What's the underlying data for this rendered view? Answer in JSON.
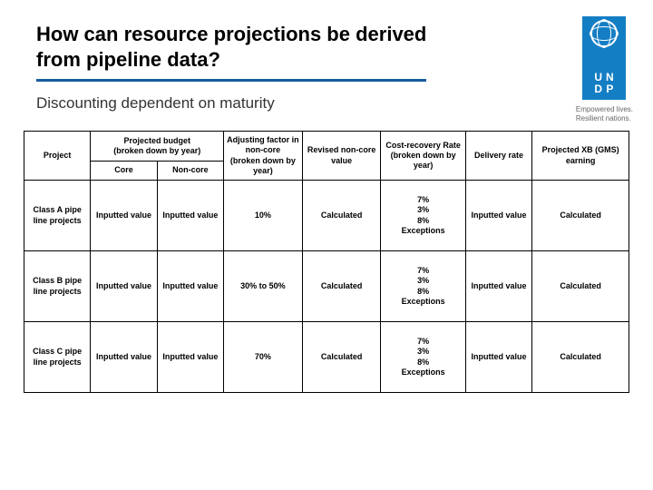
{
  "header": {
    "title": "How can resource projections be derived from pipeline data?",
    "subtitle": "Discounting dependent on maturity",
    "tagline1": "Empowered lives.",
    "tagline2": "Resilient nations.",
    "logo_letters": [
      "U",
      "N",
      "D",
      "P"
    ]
  },
  "table": {
    "head": {
      "project": "Project",
      "projected_budget": "Projected budget\n(broken down by year)",
      "core": "Core",
      "noncore": "Non-core",
      "adjusting": "Adjusting factor in non-core\n(broken down by year)",
      "revised": "Revised non-core value",
      "cost_recovery": "Cost-recovery Rate\n(broken down by year)",
      "delivery": "Delivery rate",
      "projected_xb": "Projected XB (GMS) earning"
    },
    "rows": [
      {
        "project": "Class A pipe line projects",
        "core": "Inputted value",
        "noncore": "Inputted value",
        "adjusting": "10%",
        "revised": "Calculated",
        "cost_recovery": "7%\n3%\n8%\nExceptions",
        "delivery": "Inputted value",
        "projected_xb": "Calculated"
      },
      {
        "project": "Class B pipe line projects",
        "core": "Inputted value",
        "noncore": "Inputted value",
        "adjusting": "30% to 50%",
        "revised": "Calculated",
        "cost_recovery": "7%\n3%\n8%\nExceptions",
        "delivery": "Inputted value",
        "projected_xb": "Calculated"
      },
      {
        "project": "Class C pipe line projects",
        "core": "Inputted value",
        "noncore": "Inputted value",
        "adjusting": "70%",
        "revised": "Calculated",
        "cost_recovery": "7%\n3%\n8%\nExceptions",
        "delivery": "Inputted value",
        "projected_xb": "Calculated"
      }
    ]
  },
  "style": {
    "accent": "#1a5c9e",
    "logo_bg": "#147ec4",
    "border": "#000000",
    "font_small": 9,
    "title_font": 22
  }
}
